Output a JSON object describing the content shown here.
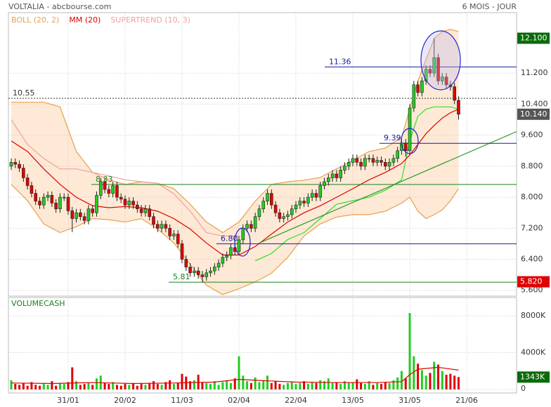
{
  "header": {
    "title": "VOLTALIA - abcbourse.com",
    "period": "6 MOIS - JOUR"
  },
  "chart_data": {
    "type": "candlestick",
    "legend": [
      {
        "name": "BOLL (20, 2)",
        "color": "#e8a050"
      },
      {
        "name": "MM (20)",
        "color": "#e00000"
      },
      {
        "name": "SUPERTREND (10, 3)",
        "color": "#f0a0a0"
      }
    ],
    "categories": [
      null,
      null,
      null,
      null,
      null,
      null,
      null,
      null,
      null,
      null,
      null,
      null,
      null,
      null,
      "31/01",
      null,
      null,
      null,
      null,
      null,
      null,
      null,
      null,
      null,
      null,
      null,
      null,
      null,
      "20/02",
      null,
      null,
      null,
      null,
      null,
      null,
      null,
      null,
      null,
      null,
      null,
      null,
      null,
      "11/03",
      null,
      null,
      null,
      null,
      null,
      null,
      null,
      null,
      null,
      null,
      null,
      null,
      null,
      "02/04",
      null,
      null,
      null,
      null,
      null,
      null,
      null,
      null,
      null,
      null,
      null,
      null,
      null,
      "22/04",
      null,
      null,
      null,
      null,
      null,
      null,
      null,
      null,
      null,
      null,
      null,
      null,
      null,
      "13/05",
      null,
      null,
      null,
      null,
      null,
      null,
      null,
      null,
      null,
      null,
      null,
      null,
      null,
      "31/05",
      null,
      null,
      null,
      null,
      null,
      null,
      null,
      null,
      null,
      null,
      null,
      null,
      null,
      "21/06"
    ],
    "open": [
      8.8,
      8.9,
      8.85,
      8.75,
      8.5,
      8.3,
      8.1,
      7.9,
      7.8,
      8.0,
      8.05,
      7.85,
      7.7,
      8.0,
      8.0,
      7.65,
      7.45,
      7.6,
      7.5,
      7.4,
      7.7,
      7.6,
      8.05,
      8.4,
      8.2,
      8.1,
      8.3,
      8.0,
      7.95,
      7.8,
      7.9,
      7.8,
      7.7,
      7.6,
      7.7,
      7.5,
      7.3,
      7.2,
      7.3,
      7.2,
      7.0,
      7.05,
      6.8,
      6.4,
      6.2,
      6.05,
      6.1,
      6.0,
      5.95,
      6.05,
      6.1,
      6.2,
      6.3,
      6.45,
      6.5,
      6.7,
      6.6,
      6.9,
      7.2,
      7.3,
      7.2,
      7.5,
      7.7,
      7.9,
      8.1,
      7.8,
      7.6,
      7.45,
      7.5,
      7.55,
      7.7,
      7.8,
      7.9,
      7.85,
      8.0,
      8.1,
      8.0,
      8.3,
      8.4,
      8.5,
      8.6,
      8.5,
      8.7,
      8.8,
      8.9,
      9.0,
      8.9,
      8.8,
      9.0,
      9.0,
      8.9,
      8.95,
      8.9,
      8.8,
      8.9,
      9.0,
      9.2,
      9.4,
      9.2,
      10.3,
      10.9,
      10.7,
      11.0,
      11.3,
      11.2,
      11.6,
      11.0,
      11.1,
      10.9,
      10.85,
      10.5,
      null,
      null
    ],
    "high": [
      9.0,
      9.0,
      8.95,
      8.85,
      8.6,
      8.4,
      8.2,
      8.0,
      8.1,
      8.15,
      8.15,
      7.95,
      8.1,
      8.1,
      8.1,
      7.75,
      7.7,
      7.7,
      7.6,
      7.8,
      7.8,
      8.15,
      8.5,
      8.5,
      8.3,
      8.4,
      8.4,
      8.1,
      8.05,
      8.0,
      8.0,
      7.9,
      7.8,
      7.8,
      7.8,
      7.6,
      7.4,
      7.4,
      7.4,
      7.3,
      7.15,
      7.15,
      6.9,
      6.5,
      6.3,
      6.2,
      6.2,
      6.1,
      6.15,
      6.2,
      6.3,
      6.4,
      6.55,
      6.6,
      6.8,
      6.8,
      7.0,
      7.3,
      7.4,
      7.4,
      7.6,
      7.8,
      8.0,
      8.2,
      8.2,
      7.9,
      7.7,
      7.6,
      7.65,
      7.8,
      7.9,
      8.0,
      8.0,
      8.1,
      8.2,
      8.2,
      8.4,
      8.5,
      8.6,
      8.7,
      8.7,
      8.8,
      8.9,
      9.0,
      9.1,
      9.1,
      9.0,
      9.1,
      9.1,
      9.1,
      9.05,
      9.05,
      9.0,
      9.0,
      9.1,
      9.3,
      9.5,
      9.5,
      10.4,
      11.0,
      11.0,
      11.1,
      11.4,
      11.4,
      12.1,
      11.7,
      11.2,
      11.2,
      11.0,
      10.95,
      10.6,
      null,
      null
    ],
    "low": [
      8.7,
      8.75,
      8.65,
      8.4,
      8.2,
      8.0,
      7.8,
      7.7,
      7.7,
      7.9,
      7.75,
      7.6,
      7.6,
      7.9,
      7.55,
      7.1,
      7.35,
      7.4,
      7.3,
      7.3,
      7.5,
      7.5,
      7.95,
      8.1,
      8.0,
      8.0,
      7.9,
      7.85,
      7.7,
      7.7,
      7.7,
      7.6,
      7.5,
      7.5,
      7.4,
      7.2,
      7.1,
      7.1,
      7.1,
      6.9,
      6.9,
      6.7,
      6.3,
      6.1,
      5.95,
      5.95,
      5.9,
      5.8,
      5.85,
      5.95,
      6.0,
      6.1,
      6.2,
      6.35,
      6.4,
      6.5,
      6.5,
      6.8,
      7.1,
      7.1,
      7.1,
      7.4,
      7.6,
      7.8,
      7.7,
      7.5,
      7.35,
      7.35,
      7.4,
      7.45,
      7.6,
      7.7,
      7.75,
      7.75,
      7.9,
      7.9,
      7.9,
      8.2,
      8.3,
      8.4,
      8.4,
      8.4,
      8.6,
      8.7,
      8.8,
      8.8,
      8.7,
      8.7,
      8.9,
      8.8,
      8.8,
      8.8,
      8.7,
      8.7,
      8.8,
      8.9,
      9.1,
      9.05,
      9.1,
      10.2,
      10.6,
      10.6,
      10.9,
      11.1,
      11.1,
      10.9,
      10.9,
      10.8,
      10.75,
      10.4,
      10.0,
      null,
      null
    ],
    "close": [
      8.9,
      8.85,
      8.75,
      8.5,
      8.3,
      8.1,
      7.9,
      7.8,
      8.0,
      8.05,
      7.85,
      7.7,
      8.0,
      8.0,
      7.65,
      7.45,
      7.6,
      7.5,
      7.4,
      7.7,
      7.6,
      8.05,
      8.4,
      8.2,
      8.1,
      8.3,
      8.0,
      7.95,
      7.8,
      7.9,
      7.8,
      7.7,
      7.6,
      7.7,
      7.5,
      7.3,
      7.2,
      7.3,
      7.2,
      7.0,
      7.05,
      6.8,
      6.4,
      6.2,
      6.05,
      6.1,
      6.0,
      5.95,
      6.05,
      6.1,
      6.2,
      6.3,
      6.45,
      6.5,
      6.7,
      6.6,
      6.9,
      7.2,
      7.3,
      7.2,
      7.5,
      7.7,
      7.9,
      8.1,
      7.8,
      7.6,
      7.45,
      7.5,
      7.55,
      7.7,
      7.8,
      7.9,
      7.85,
      8.0,
      8.1,
      8.0,
      8.3,
      8.4,
      8.5,
      8.6,
      8.5,
      8.7,
      8.8,
      8.9,
      9.0,
      8.9,
      8.8,
      9.0,
      9.0,
      8.9,
      8.95,
      8.9,
      8.8,
      8.9,
      9.0,
      9.2,
      9.4,
      9.2,
      10.3,
      10.9,
      10.7,
      11.0,
      11.3,
      11.2,
      11.6,
      11.0,
      11.1,
      10.9,
      10.85,
      10.5,
      10.14,
      null,
      null
    ],
    "up_color": "#22cc22",
    "down_color": "#e00000",
    "ylim": [
      5.45,
      12.76
    ],
    "yticks": [
      {
        "value": 11.2,
        "label": "11.200"
      },
      {
        "value": 10.4,
        "label": "10.400"
      },
      {
        "value": 9.6,
        "label": "9.600"
      },
      {
        "value": 8.8,
        "label": "8.800"
      },
      {
        "value": 8.0,
        "label": "8.000"
      },
      {
        "value": 7.2,
        "label": "7.200"
      },
      {
        "value": 6.4,
        "label": "6.400"
      },
      {
        "value": 5.6,
        "label": "5.600"
      }
    ],
    "grid": true,
    "sample_x": [
      0,
      4,
      8,
      12,
      16,
      20,
      24,
      28,
      32,
      36,
      40,
      44,
      48,
      52,
      56,
      60,
      64,
      68,
      72,
      76,
      80,
      84,
      88,
      92,
      96,
      98,
      100,
      102,
      104,
      106,
      108,
      110
    ],
    "boll_upper": [
      10.45,
      10.45,
      10.45,
      10.33,
      9.18,
      8.64,
      8.45,
      8.33,
      8.4,
      8.36,
      8.22,
      7.82,
      7.36,
      7.09,
      7.36,
      7.9,
      8.33,
      8.4,
      8.44,
      8.51,
      8.73,
      8.95,
      9.18,
      9.27,
      9.55,
      10.27,
      11.0,
      11.55,
      12.09,
      12.27,
      12.33,
      12.27
    ],
    "boll_lower": [
      8.33,
      7.91,
      7.31,
      7.09,
      7.24,
      7.45,
      7.42,
      7.36,
      7.45,
      7.18,
      6.82,
      6.27,
      5.73,
      5.49,
      5.64,
      5.82,
      6.04,
      6.45,
      7.0,
      7.31,
      7.49,
      7.55,
      7.55,
      7.64,
      7.85,
      8.0,
      7.64,
      7.45,
      7.55,
      7.67,
      7.91,
      8.22
    ],
    "mm": [
      9.45,
      9.18,
      8.73,
      8.33,
      8.0,
      7.78,
      7.73,
      7.76,
      7.73,
      7.64,
      7.45,
      7.18,
      6.82,
      6.51,
      6.51,
      6.73,
      7.05,
      7.36,
      7.6,
      7.78,
      8.0,
      8.22,
      8.45,
      8.64,
      8.87,
      9.09,
      9.36,
      9.64,
      9.85,
      10.04,
      10.18,
      10.27
    ],
    "supertrend_down": [
      10.0,
      9.36,
      9.0,
      8.73,
      8.73,
      8.64,
      8.55,
      8.45,
      8.4,
      8.36,
      8.09,
      7.64,
      7.09,
      7.0,
      7.0,
      null,
      null,
      null,
      null,
      null,
      null,
      null,
      null,
      null,
      null,
      null,
      null,
      null,
      null,
      null,
      null,
      null
    ],
    "supertrend_up": [
      null,
      null,
      null,
      null,
      null,
      null,
      null,
      null,
      null,
      null,
      null,
      null,
      null,
      null,
      null,
      6.36,
      6.55,
      6.91,
      7.09,
      7.45,
      7.82,
      7.91,
      8.0,
      8.18,
      8.45,
      9.45,
      10.09,
      10.27,
      10.33,
      10.33,
      10.33,
      10.27
    ],
    "supertrend_up_color": "#33dd33",
    "trendline": {
      "x": [
        61,
        133
      ],
      "values": [
        6.82,
        10.09
      ],
      "color": "#2a9a2a"
    },
    "levels": [
      {
        "value": 10.55,
        "color": "#333333",
        "style": "dotted"
      },
      {
        "value": 11.36,
        "color": "#1a1aa0",
        "style": "solid"
      },
      {
        "value": 9.39,
        "color": "#1a1aa0",
        "style": "solid"
      },
      {
        "value": 6.8,
        "label": "6.80",
        "color": "#1a1aa0",
        "style": "solid"
      },
      {
        "value": 8.33,
        "color": "#1f7f1f",
        "style": "solid"
      },
      {
        "value": 5.81,
        "color": "#1f7f1f",
        "style": "solid"
      }
    ],
    "price_tags": [
      {
        "value": 12.1,
        "label": "12.100",
        "color": "#0a6a0a"
      },
      {
        "value": 10.14,
        "label": "10.140",
        "color": "#555555"
      },
      {
        "value": 5.82,
        "label": "5.820",
        "color": "#e00000"
      }
    ],
    "volume": {
      "title": "VOLUMECASH",
      "values": [
        1000,
        600,
        500,
        700,
        400,
        800,
        500,
        400,
        600,
        500,
        900,
        400,
        700,
        600,
        800,
        2400,
        900,
        500,
        600,
        700,
        500,
        1200,
        1500,
        700,
        600,
        800,
        500,
        400,
        600,
        500,
        700,
        400,
        600,
        500,
        700,
        900,
        600,
        500,
        800,
        1000,
        600,
        700,
        1700,
        1400,
        900,
        1000,
        1600,
        800,
        700,
        600,
        900,
        500,
        800,
        1000,
        700,
        1200,
        3600,
        1500,
        900,
        700,
        1300,
        800,
        1000,
        1500,
        700,
        900,
        600,
        500,
        700,
        800,
        600,
        700,
        900,
        600,
        800,
        700,
        1000,
        900,
        1200,
        700,
        800,
        600,
        900,
        700,
        800,
        1100,
        700,
        600,
        900,
        500,
        700,
        600,
        800,
        700,
        1000,
        1300,
        2000,
        1200,
        8300,
        3600,
        2800,
        2100,
        1500,
        1800,
        3000,
        2700,
        2000,
        1600,
        1700,
        1500,
        1343,
        null,
        null
      ],
      "ylim": [
        -380,
        9900
      ],
      "yticks": [
        {
          "value": 8000,
          "label": "8000K"
        },
        {
          "value": 4000,
          "label": "4000K"
        },
        0
      ],
      "ma_x": [
        0,
        10,
        20,
        30,
        40,
        50,
        56,
        60,
        70,
        80,
        90,
        96,
        98,
        100,
        105,
        110
      ],
      "ma": [
        700,
        650,
        750,
        650,
        700,
        800,
        1100,
        1000,
        800,
        750,
        750,
        850,
        1600,
        2200,
        2400,
        2100
      ],
      "ma_color": "#e00000",
      "tag": {
        "value": 1343,
        "label": "1343K",
        "color": "#0a6a0a"
      }
    }
  }
}
